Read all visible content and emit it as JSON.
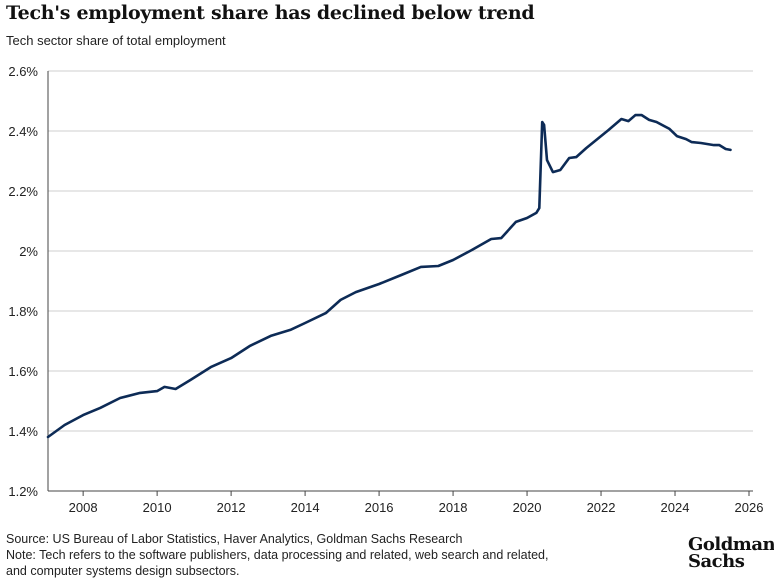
{
  "chart_data": {
    "type": "line",
    "title": "Tech's employment share has declined below trend",
    "subtitle": "Tech sector share of total employment",
    "xlabel": "",
    "ylabel": "",
    "xlim": [
      2007.05,
      2026
    ],
    "ylim": [
      1.2,
      2.6
    ],
    "grid": "horizontal",
    "x_ticks": [
      "2008",
      "2010",
      "2012",
      "2014",
      "2016",
      "2018",
      "2020",
      "2022",
      "2024",
      "2026"
    ],
    "y_ticks": [
      "1.2%",
      "1.4%",
      "1.6%",
      "1.8%",
      "2%",
      "2.2%",
      "2.4%",
      "2.6%"
    ],
    "line_color": "#0d2b56",
    "series": [
      {
        "x": [
          2007.05,
          2007.5,
          2008,
          2008.46,
          2009,
          2009.54,
          2010,
          2010.2,
          2010.5,
          2010.9,
          2011.45,
          2012,
          2012.5,
          2013.07,
          2013.6,
          2014,
          2014.56,
          2014.96,
          2015.37,
          2016,
          2016.6,
          2017.13,
          2017.6,
          2018,
          2018.5,
          2019.03,
          2019.3,
          2019.7,
          2020,
          2020.25,
          2020.33,
          2020.41,
          2020.46,
          2020.54,
          2020.7,
          2020.9,
          2021.14,
          2021.33,
          2021.6,
          2022,
          2022.2,
          2022.55,
          2022.74,
          2022.93,
          2023.1,
          2023.3,
          2023.5,
          2023.85,
          2024.05,
          2024.3,
          2024.45,
          2024.7,
          2025.05,
          2025.2,
          2025.37,
          2025.5
        ],
        "y": [
          1.38,
          1.42,
          1.453,
          1.477,
          1.51,
          1.527,
          1.533,
          1.547,
          1.54,
          1.57,
          1.613,
          1.643,
          1.683,
          1.717,
          1.737,
          1.76,
          1.793,
          1.837,
          1.863,
          1.89,
          1.92,
          1.947,
          1.95,
          1.97,
          2.003,
          2.04,
          2.043,
          2.097,
          2.11,
          2.127,
          2.143,
          2.43,
          2.42,
          2.303,
          2.263,
          2.27,
          2.31,
          2.313,
          2.343,
          2.383,
          2.403,
          2.44,
          2.433,
          2.453,
          2.453,
          2.437,
          2.43,
          2.407,
          2.383,
          2.373,
          2.363,
          2.36,
          2.353,
          2.353,
          2.34,
          2.337
        ]
      }
    ]
  },
  "footer": {
    "source": "Source: US Bureau of Labor Statistics, Haver Analytics, Goldman Sachs Research",
    "note": "Note: Tech refers to the software publishers, data processing and related, web search and related, and computer systems design subsectors."
  },
  "logo": {
    "line1": "Goldman",
    "line2": "Sachs"
  }
}
